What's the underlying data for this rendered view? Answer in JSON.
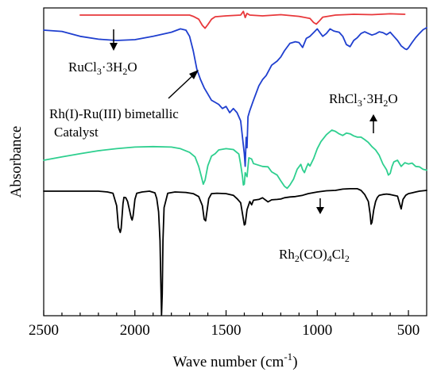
{
  "chart_data": {
    "type": "line",
    "title": "",
    "xlabel": "Wave number (cm",
    "xlabel_sup": "-1",
    "xlabel_end": ")",
    "ylabel": "Absorbance",
    "xlim": [
      2500,
      400
    ],
    "x_reversed": true,
    "y_ticks_shown": false,
    "grid": false,
    "legend": "none",
    "x_ticks": [
      2500,
      2000,
      1500,
      1000,
      500
    ],
    "x_tick_labels": [
      "2500",
      "2000",
      "1500",
      "1000",
      "500"
    ],
    "series": [
      {
        "color": "#e8383b",
        "offset": 0,
        "points": [
          [
            2300,
            0.0
          ],
          [
            2000,
            0.0
          ],
          [
            1800,
            0.0
          ],
          [
            1700,
            0.0
          ],
          [
            1680,
            -0.3
          ],
          [
            1650,
            -1.0
          ],
          [
            1630,
            -2.5
          ],
          [
            1615,
            -3.2
          ],
          [
            1600,
            -2.3
          ],
          [
            1580,
            -1.0
          ],
          [
            1560,
            -0.4
          ],
          [
            1500,
            -0.2
          ],
          [
            1420,
            0.0
          ],
          [
            1405,
            0.9
          ],
          [
            1395,
            -0.6
          ],
          [
            1385,
            0.4
          ],
          [
            1370,
            0.0
          ],
          [
            1300,
            -0.2
          ],
          [
            1200,
            0.1
          ],
          [
            1100,
            -0.3
          ],
          [
            1040,
            -0.8
          ],
          [
            1020,
            -1.8
          ],
          [
            1005,
            -2.2
          ],
          [
            990,
            -1.5
          ],
          [
            970,
            -0.5
          ],
          [
            900,
            0.0
          ],
          [
            800,
            0.2
          ],
          [
            700,
            0.1
          ],
          [
            600,
            0.3
          ],
          [
            520,
            0.2
          ]
        ]
      },
      {
        "color": "#1f3fcf",
        "offset": 0,
        "points": [
          [
            2500,
            0.0
          ],
          [
            2400,
            -0.3
          ],
          [
            2300,
            -1.5
          ],
          [
            2200,
            -2.2
          ],
          [
            2100,
            -2.5
          ],
          [
            2000,
            -2.3
          ],
          [
            1900,
            -1.5
          ],
          [
            1800,
            -0.5
          ],
          [
            1750,
            0.3
          ],
          [
            1720,
            0.0
          ],
          [
            1700,
            -1.5
          ],
          [
            1680,
            -5.0
          ],
          [
            1660,
            -9.5
          ],
          [
            1640,
            -12.0
          ],
          [
            1620,
            -14.0
          ],
          [
            1600,
            -15.5
          ],
          [
            1580,
            -17.0
          ],
          [
            1560,
            -17.5
          ],
          [
            1540,
            -18.0
          ],
          [
            1520,
            -19.0
          ],
          [
            1500,
            -18.5
          ],
          [
            1480,
            -20.0
          ],
          [
            1460,
            -19.0
          ],
          [
            1440,
            -20.0
          ],
          [
            1420,
            -22.0
          ],
          [
            1410,
            -26.0
          ],
          [
            1400,
            -30.0
          ],
          [
            1395,
            -33.0
          ],
          [
            1390,
            -26.0
          ],
          [
            1385,
            -28.5
          ],
          [
            1380,
            -21.0
          ],
          [
            1370,
            -19.5
          ],
          [
            1350,
            -17.0
          ],
          [
            1320,
            -13.5
          ],
          [
            1300,
            -12.0
          ],
          [
            1280,
            -11.0
          ],
          [
            1250,
            -8.5
          ],
          [
            1220,
            -7.5
          ],
          [
            1200,
            -6.5
          ],
          [
            1180,
            -5.0
          ],
          [
            1150,
            -3.2
          ],
          [
            1120,
            -2.8
          ],
          [
            1100,
            -3.0
          ],
          [
            1080,
            -4.2
          ],
          [
            1060,
            -2.0
          ],
          [
            1040,
            -1.5
          ],
          [
            1020,
            -0.6
          ],
          [
            1000,
            0.3
          ],
          [
            990,
            -0.3
          ],
          [
            970,
            -1.5
          ],
          [
            950,
            -0.8
          ],
          [
            930,
            0.3
          ],
          [
            910,
            -0.2
          ],
          [
            900,
            -0.3
          ],
          [
            880,
            -0.5
          ],
          [
            860,
            -1.5
          ],
          [
            840,
            -3.5
          ],
          [
            820,
            -4.0
          ],
          [
            800,
            -2.5
          ],
          [
            780,
            -1.8
          ],
          [
            760,
            -0.8
          ],
          [
            740,
            -0.4
          ],
          [
            720,
            -0.8
          ],
          [
            700,
            -1.2
          ],
          [
            680,
            -0.9
          ],
          [
            660,
            -0.4
          ],
          [
            640,
            -0.6
          ],
          [
            620,
            -1.1
          ],
          [
            600,
            -0.5
          ],
          [
            580,
            -1.5
          ],
          [
            560,
            -2.5
          ],
          [
            540,
            -3.8
          ],
          [
            520,
            -4.5
          ],
          [
            510,
            -4.7
          ],
          [
            500,
            -4.3
          ],
          [
            480,
            -3.0
          ],
          [
            460,
            -1.8
          ],
          [
            440,
            -0.8
          ],
          [
            420,
            0.1
          ],
          [
            400,
            0.6
          ]
        ]
      },
      {
        "color": "#2ecf8f",
        "offset": 0,
        "points": [
          [
            2500,
            0.0
          ],
          [
            2400,
            0.8
          ],
          [
            2300,
            1.6
          ],
          [
            2200,
            2.3
          ],
          [
            2100,
            2.8
          ],
          [
            2000,
            3.2
          ],
          [
            1900,
            3.3
          ],
          [
            1800,
            3.2
          ],
          [
            1750,
            2.8
          ],
          [
            1700,
            1.9
          ],
          [
            1670,
            0.8
          ],
          [
            1650,
            -1.5
          ],
          [
            1635,
            -4.0
          ],
          [
            1625,
            -5.8
          ],
          [
            1615,
            -4.8
          ],
          [
            1600,
            -1.3
          ],
          [
            1580,
            1.0
          ],
          [
            1560,
            1.6
          ],
          [
            1540,
            2.5
          ],
          [
            1500,
            2.8
          ],
          [
            1460,
            2.6
          ],
          [
            1430,
            1.5
          ],
          [
            1420,
            -1.0
          ],
          [
            1410,
            -4.0
          ],
          [
            1405,
            -6.0
          ],
          [
            1400,
            -5.8
          ],
          [
            1395,
            -3.0
          ],
          [
            1385,
            -4.0
          ],
          [
            1375,
            0.6
          ],
          [
            1360,
            0.3
          ],
          [
            1350,
            -0.8
          ],
          [
            1300,
            -1.5
          ],
          [
            1270,
            -1.6
          ],
          [
            1250,
            -2.8
          ],
          [
            1220,
            -3.6
          ],
          [
            1200,
            -5.0
          ],
          [
            1180,
            -6.3
          ],
          [
            1165,
            -6.8
          ],
          [
            1150,
            -6.0
          ],
          [
            1130,
            -4.6
          ],
          [
            1110,
            -2.2
          ],
          [
            1090,
            -1.0
          ],
          [
            1080,
            -2.3
          ],
          [
            1070,
            -3.0
          ],
          [
            1060,
            -1.8
          ],
          [
            1050,
            -0.8
          ],
          [
            1040,
            -1.4
          ],
          [
            1020,
            0.4
          ],
          [
            1000,
            2.8
          ],
          [
            980,
            4.5
          ],
          [
            950,
            6.2
          ],
          [
            920,
            7.3
          ],
          [
            900,
            7.0
          ],
          [
            880,
            6.4
          ],
          [
            860,
            6.0
          ],
          [
            840,
            6.6
          ],
          [
            820,
            6.4
          ],
          [
            800,
            5.9
          ],
          [
            780,
            5.6
          ],
          [
            760,
            5.6
          ],
          [
            740,
            5.0
          ],
          [
            720,
            4.3
          ],
          [
            700,
            3.3
          ],
          [
            680,
            2.5
          ],
          [
            660,
            1.2
          ],
          [
            640,
            -0.9
          ],
          [
            620,
            -2.3
          ],
          [
            610,
            -3.6
          ],
          [
            600,
            -3.2
          ],
          [
            590,
            -1.5
          ],
          [
            580,
            -0.4
          ],
          [
            560,
            0.0
          ],
          [
            540,
            -1.5
          ],
          [
            520,
            -0.6
          ],
          [
            500,
            -0.9
          ],
          [
            480,
            -0.7
          ],
          [
            460,
            -1.5
          ],
          [
            440,
            -1.6
          ],
          [
            420,
            -2.2
          ],
          [
            400,
            -2.4
          ]
        ]
      },
      {
        "color": "#000000",
        "offset": 0,
        "points": [
          [
            2500,
            0.0
          ],
          [
            2400,
            0.0
          ],
          [
            2300,
            0.0
          ],
          [
            2200,
            0.0
          ],
          [
            2150,
            -0.2
          ],
          [
            2120,
            -0.5
          ],
          [
            2100,
            -3.5
          ],
          [
            2090,
            -8.8
          ],
          [
            2080,
            -10.0
          ],
          [
            2075,
            -9.0
          ],
          [
            2065,
            -3.0
          ],
          [
            2060,
            -1.5
          ],
          [
            2050,
            -1.6
          ],
          [
            2040,
            -2.5
          ],
          [
            2030,
            -4.5
          ],
          [
            2020,
            -6.5
          ],
          [
            2015,
            -7.0
          ],
          [
            2010,
            -6.0
          ],
          [
            2000,
            -2.0
          ],
          [
            1990,
            -0.5
          ],
          [
            1960,
            -0.2
          ],
          [
            1920,
            0.0
          ],
          [
            1890,
            -0.4
          ],
          [
            1880,
            -1.8
          ],
          [
            1870,
            -5.0
          ],
          [
            1862,
            -12.0
          ],
          [
            1858,
            -22.0
          ],
          [
            1854,
            -30.0
          ],
          [
            1850,
            -25.0
          ],
          [
            1846,
            -12.0
          ],
          [
            1840,
            -4.0
          ],
          [
            1820,
            -0.5
          ],
          [
            1780,
            -0.2
          ],
          [
            1720,
            -0.3
          ],
          [
            1680,
            -0.6
          ],
          [
            1650,
            -1.3
          ],
          [
            1630,
            -3.5
          ],
          [
            1620,
            -6.8
          ],
          [
            1612,
            -7.2
          ],
          [
            1605,
            -5.0
          ],
          [
            1595,
            -1.8
          ],
          [
            1580,
            -0.6
          ],
          [
            1550,
            -0.5
          ],
          [
            1500,
            -0.6
          ],
          [
            1460,
            -1.0
          ],
          [
            1440,
            -1.8
          ],
          [
            1420,
            -2.8
          ],
          [
            1410,
            -5.5
          ],
          [
            1400,
            -8.2
          ],
          [
            1395,
            -8.0
          ],
          [
            1385,
            -4.5
          ],
          [
            1370,
            -2.5
          ],
          [
            1360,
            -3.3
          ],
          [
            1350,
            -2.2
          ],
          [
            1320,
            -2.0
          ],
          [
            1300,
            -1.6
          ],
          [
            1270,
            -2.6
          ],
          [
            1250,
            -2.1
          ],
          [
            1220,
            -2.0
          ],
          [
            1200,
            -1.9
          ],
          [
            1180,
            -1.6
          ],
          [
            1150,
            -1.4
          ],
          [
            1120,
            -1.3
          ],
          [
            1080,
            -1.0
          ],
          [
            1050,
            -0.6
          ],
          [
            1000,
            -0.2
          ],
          [
            950,
            0.1
          ],
          [
            900,
            0.2
          ],
          [
            860,
            0.5
          ],
          [
            820,
            0.6
          ],
          [
            780,
            0.6
          ],
          [
            760,
            0.2
          ],
          [
            740,
            -0.8
          ],
          [
            720,
            -2.5
          ],
          [
            710,
            -5.5
          ],
          [
            705,
            -8.0
          ],
          [
            700,
            -7.6
          ],
          [
            690,
            -4.5
          ],
          [
            680,
            -2.5
          ],
          [
            670,
            -1.5
          ],
          [
            660,
            -1.0
          ],
          [
            640,
            -0.8
          ],
          [
            620,
            -0.7
          ],
          [
            600,
            -0.8
          ],
          [
            580,
            -1.0
          ],
          [
            560,
            -1.2
          ],
          [
            545,
            -3.5
          ],
          [
            540,
            -4.3
          ],
          [
            530,
            -2.0
          ],
          [
            515,
            -1.0
          ],
          [
            500,
            -0.6
          ],
          [
            480,
            -0.4
          ],
          [
            460,
            -0.2
          ],
          [
            440,
            0.0
          ],
          [
            420,
            0.1
          ],
          [
            400,
            0.2
          ]
        ]
      }
    ],
    "annotations": [
      {
        "text": "RuCl",
        "sub1": "3",
        "mid": "·3H",
        "sub2": "2",
        "end": "O"
      },
      {
        "line1": "Rh(I)-Ru(III) bimetallic",
        "line2": "Catalyst"
      },
      {
        "text": "RhCl",
        "sub1": "3",
        "mid": "·3H",
        "sub2": "2",
        "end": "O"
      },
      {
        "text": "Rh",
        "sub1": "2",
        "mid": "(CO)",
        "sub2": "4",
        "mid2": "Cl",
        "sub3": "2"
      }
    ]
  }
}
